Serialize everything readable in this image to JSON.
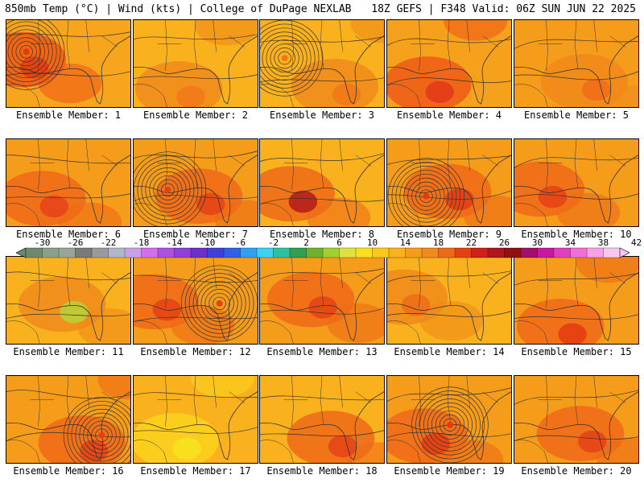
{
  "header": {
    "left": "850mb Temp (°C) | Wind (kts) | College of DuPage NEXLAB",
    "right": "18Z GEFS | F348 Valid: 06Z SUN JUN 22 2025"
  },
  "panels": [
    {
      "label": "Ensemble Member: 1",
      "base": "#f7a51c",
      "warm": "#ef5a16",
      "hot": "#e23a12",
      "cyclone": true
    },
    {
      "label": "Ensemble Member: 2",
      "base": "#f9b21d",
      "warm": "#f08a1a",
      "hot": "#f2761a",
      "cyclone": false
    },
    {
      "label": "Ensemble Member: 3",
      "base": "#f9b21d",
      "warm": "#f08a1a",
      "hot": "#f07518",
      "cyclone": true
    },
    {
      "label": "Ensemble Member: 4",
      "base": "#f6a11b",
      "warm": "#ee5c18",
      "hot": "#e2361a",
      "cyclone": false
    },
    {
      "label": "Ensemble Member: 5",
      "base": "#f59d1b",
      "warm": "#f08a1a",
      "hot": "#f06a18",
      "cyclone": false
    },
    {
      "label": "Ensemble Member: 6",
      "base": "#f59d1b",
      "warm": "#ee6a18",
      "hot": "#e6401a",
      "cyclone": false
    },
    {
      "label": "Ensemble Member: 7",
      "base": "#f59d1b",
      "warm": "#ee6a18",
      "hot": "#e44016",
      "cyclone": true
    },
    {
      "label": "Ensemble Member: 8",
      "base": "#f9b21d",
      "warm": "#ee6a18",
      "hot": "#b0141c",
      "cyclone": false
    },
    {
      "label": "Ensemble Member: 9",
      "base": "#f59d1b",
      "warm": "#ee6a18",
      "hot": "#e23a12",
      "cyclone": true
    },
    {
      "label": "Ensemble Member: 10",
      "base": "#f59d1b",
      "warm": "#ee6a18",
      "hot": "#e44016",
      "cyclone": false
    },
    {
      "label": "Ensemble Member: 11",
      "base": "#f9b21d",
      "warm": "#f08a1a",
      "hot": "#b5d63a",
      "cyclone": false
    },
    {
      "label": "Ensemble Member: 12",
      "base": "#f59d1b",
      "warm": "#ee6a18",
      "hot": "#e44016",
      "cyclone": true
    },
    {
      "label": "Ensemble Member: 13",
      "base": "#f59d1b",
      "warm": "#ee6a18",
      "hot": "#e44016",
      "cyclone": false
    },
    {
      "label": "Ensemble Member: 14",
      "base": "#f9b21d",
      "warm": "#f08a1a",
      "hot": "#ee6a18",
      "cyclone": false
    },
    {
      "label": "Ensemble Member: 15",
      "base": "#f59d1b",
      "warm": "#ee6a18",
      "hot": "#e23a12",
      "cyclone": false
    },
    {
      "label": "Ensemble Member: 16",
      "base": "#f59d1b",
      "warm": "#ee6a18",
      "hot": "#e44016",
      "cyclone": true
    },
    {
      "label": "Ensemble Member: 17",
      "base": "#f9b21d",
      "warm": "#fbd21f",
      "hot": "#f7e51f",
      "cyclone": false
    },
    {
      "label": "Ensemble Member: 18",
      "base": "#f9b21d",
      "warm": "#ee6a18",
      "hot": "#e44016",
      "cyclone": false
    },
    {
      "label": "Ensemble Member: 19",
      "base": "#f59d1b",
      "warm": "#ee6a18",
      "hot": "#e23a12",
      "cyclone": true
    },
    {
      "label": "Ensemble Member: 20",
      "base": "#f59d1b",
      "warm": "#ee6a18",
      "hot": "#e44016",
      "cyclone": false
    }
  ],
  "colorbar": {
    "labels": [
      "-30",
      "-26",
      "-22",
      "-18",
      "-14",
      "-10",
      "-6",
      "-2",
      "2",
      "6",
      "10",
      "14",
      "18",
      "22",
      "26",
      "30",
      "34",
      "38",
      "42"
    ],
    "colors": [
      "#6e8a6e",
      "#8aa08a",
      "#9aa49a",
      "#7a7a7a",
      "#9a9a9a",
      "#b0b8c8",
      "#c8a0e8",
      "#d070e8",
      "#b050e0",
      "#9040d8",
      "#6a30c8",
      "#4040d8",
      "#3060e8",
      "#30a0f0",
      "#40d0f0",
      "#30c0a0",
      "#30a050",
      "#70b030",
      "#a0d030",
      "#e0e040",
      "#f8e020",
      "#fbc81d",
      "#f9b21d",
      "#f59d1b",
      "#f08a1a",
      "#ee6a18",
      "#e44016",
      "#d0201a",
      "#b0141c",
      "#901010",
      "#a0106a",
      "#c818a0",
      "#e040c0",
      "#f070d8",
      "#f8a0e8",
      "#f8c8f0"
    ]
  }
}
